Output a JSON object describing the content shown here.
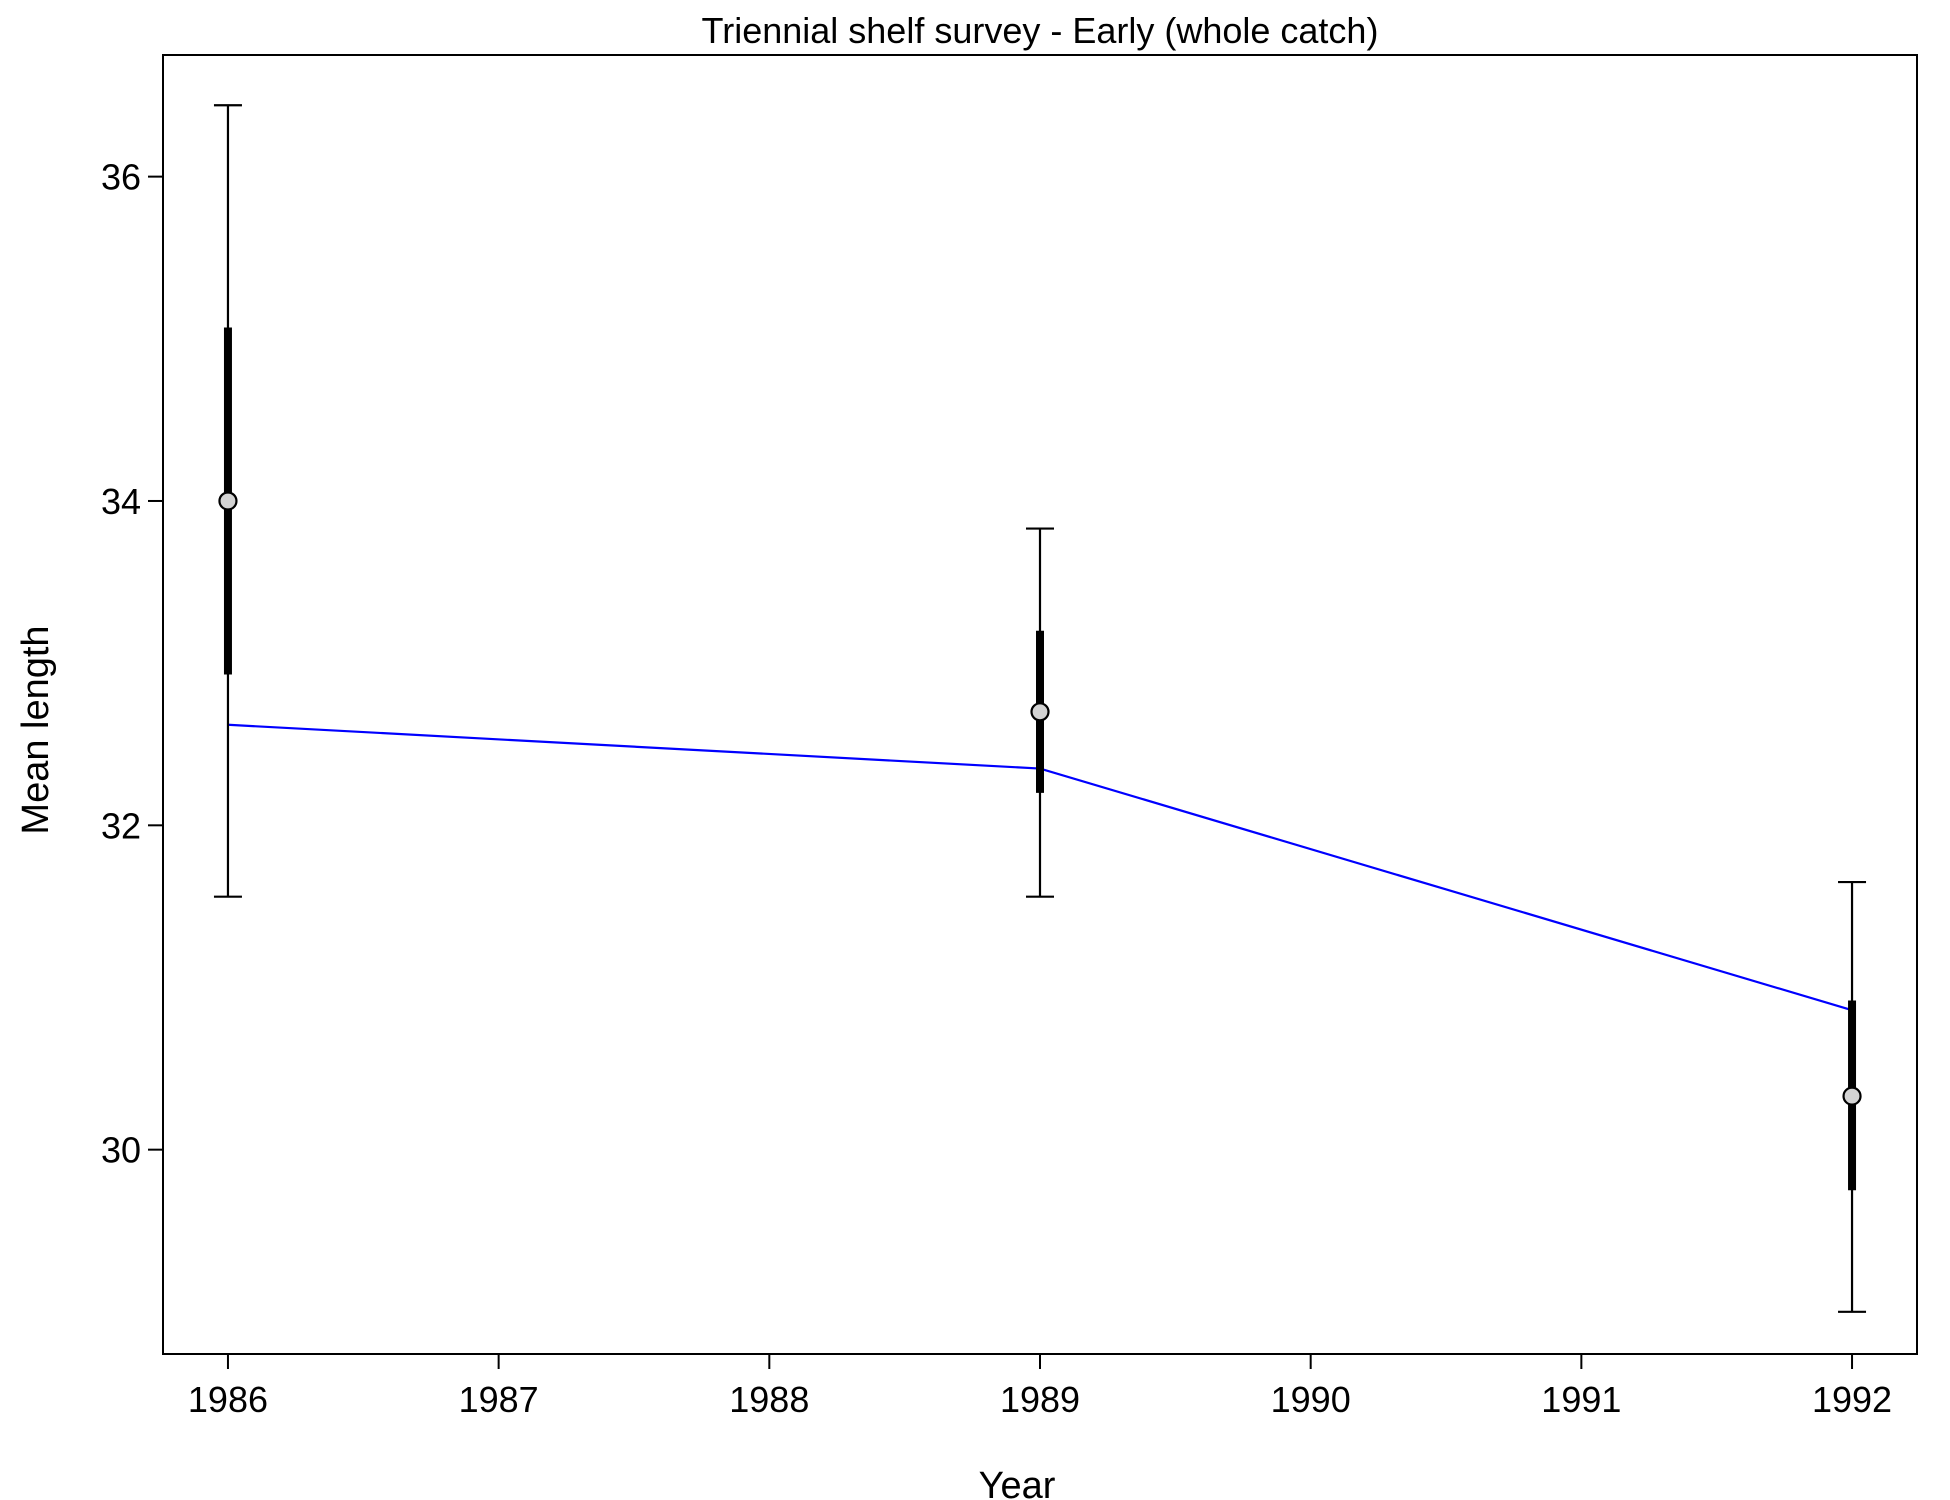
{
  "chart_data": {
    "type": "line",
    "title": "Triennial shelf survey - Early (whole catch)",
    "xlabel": "Year",
    "ylabel": "Mean length",
    "x_ticks": [
      1986,
      1987,
      1988,
      1989,
      1990,
      1991,
      1992
    ],
    "y_ticks": [
      30,
      32,
      34,
      36
    ],
    "xlim": [
      1985.76,
      1992.24
    ],
    "ylim": [
      28.74,
      36.75
    ],
    "grid": false,
    "legend": "none",
    "series": [
      {
        "role": "observed",
        "x": [
          1986,
          1989,
          1992
        ],
        "y": [
          34.0,
          32.7,
          30.33
        ],
        "ci_inner": [
          [
            32.93,
            35.07
          ],
          [
            32.2,
            33.2
          ],
          [
            29.75,
            30.92
          ]
        ],
        "ci_outer": [
          [
            31.56,
            36.44
          ],
          [
            31.56,
            33.83
          ],
          [
            29.0,
            31.65
          ]
        ],
        "marker_color": "#d3d3d3",
        "bar_color": "#000000"
      },
      {
        "role": "expected",
        "x": [
          1986,
          1989,
          1992
        ],
        "y": [
          32.62,
          32.35,
          30.86
        ],
        "color": "#0000ff"
      }
    ]
  }
}
